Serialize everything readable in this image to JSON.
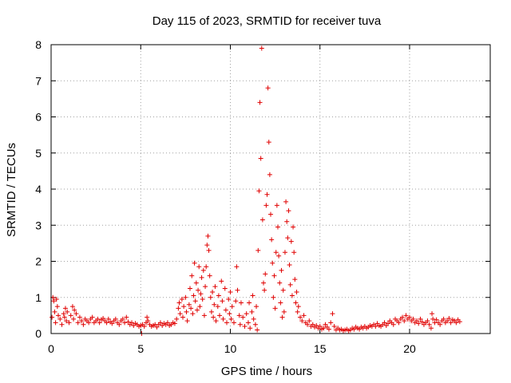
{
  "chart_data": {
    "type": "scatter",
    "title": "Day 115 of 2023, SRMTID for receiver tuva",
    "xlabel": "GPS time / hours",
    "ylabel": "SRMTID / TECUs",
    "xlim": [
      0,
      24.5
    ],
    "ylim": [
      0,
      8
    ],
    "xticks": [
      0,
      5,
      10,
      15,
      20
    ],
    "yticks": [
      0,
      1,
      2,
      3,
      4,
      5,
      6,
      7,
      8
    ],
    "grid": true,
    "marker": "+",
    "color": "#e00000",
    "series": [
      {
        "name": "SRMTID",
        "points": [
          [
            0.05,
            0.45
          ],
          [
            0.1,
            1.0
          ],
          [
            0.15,
            0.9
          ],
          [
            0.2,
            0.6
          ],
          [
            0.25,
            0.3
          ],
          [
            0.3,
            0.95
          ],
          [
            0.35,
            0.75
          ],
          [
            0.4,
            0.5
          ],
          [
            0.5,
            0.4
          ],
          [
            0.6,
            0.25
          ],
          [
            0.7,
            0.55
          ],
          [
            0.75,
            0.45
          ],
          [
            0.8,
            0.7
          ],
          [
            0.85,
            0.35
          ],
          [
            0.9,
            0.6
          ],
          [
            1.0,
            0.3
          ],
          [
            1.1,
            0.5
          ],
          [
            1.2,
            0.75
          ],
          [
            1.25,
            0.4
          ],
          [
            1.3,
            0.65
          ],
          [
            1.4,
            0.55
          ],
          [
            1.5,
            0.3
          ],
          [
            1.6,
            0.45
          ],
          [
            1.7,
            0.35
          ],
          [
            1.8,
            0.25
          ],
          [
            1.9,
            0.4
          ],
          [
            2.0,
            0.35
          ],
          [
            2.1,
            0.3
          ],
          [
            2.2,
            0.4
          ],
          [
            2.3,
            0.45
          ],
          [
            2.4,
            0.3
          ],
          [
            2.5,
            0.35
          ],
          [
            2.6,
            0.4
          ],
          [
            2.7,
            0.3
          ],
          [
            2.8,
            0.38
          ],
          [
            2.9,
            0.42
          ],
          [
            3.0,
            0.35
          ],
          [
            3.1,
            0.3
          ],
          [
            3.2,
            0.4
          ],
          [
            3.3,
            0.32
          ],
          [
            3.4,
            0.28
          ],
          [
            3.5,
            0.35
          ],
          [
            3.6,
            0.4
          ],
          [
            3.7,
            0.3
          ],
          [
            3.8,
            0.25
          ],
          [
            3.9,
            0.35
          ],
          [
            4.0,
            0.4
          ],
          [
            4.1,
            0.3
          ],
          [
            4.2,
            0.45
          ],
          [
            4.3,
            0.32
          ],
          [
            4.4,
            0.25
          ],
          [
            4.5,
            0.3
          ],
          [
            4.6,
            0.22
          ],
          [
            4.7,
            0.28
          ],
          [
            4.8,
            0.25
          ],
          [
            4.9,
            0.2
          ],
          [
            5.0,
            0.22
          ],
          [
            5.05,
            0.0
          ],
          [
            5.1,
            0.25
          ],
          [
            5.2,
            0.2
          ],
          [
            5.3,
            0.3
          ],
          [
            5.35,
            0.45
          ],
          [
            5.4,
            0.35
          ],
          [
            5.5,
            0.25
          ],
          [
            5.6,
            0.2
          ],
          [
            5.7,
            0.22
          ],
          [
            5.8,
            0.25
          ],
          [
            5.9,
            0.18
          ],
          [
            6.0,
            0.25
          ],
          [
            6.1,
            0.3
          ],
          [
            6.2,
            0.22
          ],
          [
            6.3,
            0.28
          ],
          [
            6.4,
            0.25
          ],
          [
            6.5,
            0.3
          ],
          [
            6.6,
            0.22
          ],
          [
            6.7,
            0.25
          ],
          [
            6.8,
            0.3
          ],
          [
            6.9,
            0.28
          ],
          [
            7.0,
            0.4
          ],
          [
            7.1,
            0.7
          ],
          [
            7.15,
            0.85
          ],
          [
            7.2,
            0.55
          ],
          [
            7.3,
            0.95
          ],
          [
            7.35,
            0.45
          ],
          [
            7.4,
            0.75
          ],
          [
            7.5,
            1.0
          ],
          [
            7.55,
            0.6
          ],
          [
            7.6,
            0.35
          ],
          [
            7.7,
            0.8
          ],
          [
            7.75,
            1.25
          ],
          [
            7.8,
            0.7
          ],
          [
            7.85,
            1.6
          ],
          [
            7.9,
            0.55
          ],
          [
            7.95,
            1.05
          ],
          [
            8.0,
            1.95
          ],
          [
            8.05,
            0.9
          ],
          [
            8.1,
            1.4
          ],
          [
            8.15,
            0.65
          ],
          [
            8.2,
            1.2
          ],
          [
            8.25,
            1.85
          ],
          [
            8.3,
            0.75
          ],
          [
            8.35,
            1.1
          ],
          [
            8.4,
            1.55
          ],
          [
            8.45,
            0.95
          ],
          [
            8.5,
            1.75
          ],
          [
            8.55,
            0.5
          ],
          [
            8.6,
            1.3
          ],
          [
            8.65,
            1.85
          ],
          [
            8.7,
            2.45
          ],
          [
            8.75,
            2.7
          ],
          [
            8.8,
            2.3
          ],
          [
            8.85,
            1.6
          ],
          [
            8.9,
            1.0
          ],
          [
            8.95,
            0.6
          ],
          [
            9.0,
            1.15
          ],
          [
            9.05,
            0.45
          ],
          [
            9.1,
            0.8
          ],
          [
            9.15,
            1.3
          ],
          [
            9.2,
            0.35
          ],
          [
            9.3,
            0.75
          ],
          [
            9.35,
            1.05
          ],
          [
            9.4,
            0.5
          ],
          [
            9.5,
            1.45
          ],
          [
            9.55,
            0.9
          ],
          [
            9.6,
            0.4
          ],
          [
            9.7,
            1.25
          ],
          [
            9.75,
            0.65
          ],
          [
            9.8,
            0.3
          ],
          [
            9.9,
            0.95
          ],
          [
            9.95,
            0.55
          ],
          [
            10.0,
            1.15
          ],
          [
            10.05,
            0.4
          ],
          [
            10.1,
            0.75
          ],
          [
            10.2,
            0.3
          ],
          [
            10.3,
            0.9
          ],
          [
            10.35,
            1.85
          ],
          [
            10.4,
            1.2
          ],
          [
            10.5,
            0.5
          ],
          [
            10.55,
            0.25
          ],
          [
            10.6,
            0.85
          ],
          [
            10.7,
            0.45
          ],
          [
            10.8,
            0.2
          ],
          [
            10.9,
            0.55
          ],
          [
            11.0,
            0.3
          ],
          [
            11.05,
            0.85
          ],
          [
            11.1,
            0.15
          ],
          [
            11.2,
            0.6
          ],
          [
            11.25,
            1.05
          ],
          [
            11.3,
            0.4
          ],
          [
            11.4,
            0.25
          ],
          [
            11.45,
            0.75
          ],
          [
            11.5,
            0.1
          ],
          [
            11.55,
            2.3
          ],
          [
            11.6,
            3.95
          ],
          [
            11.65,
            6.4
          ],
          [
            11.7,
            4.85
          ],
          [
            11.75,
            7.9
          ],
          [
            11.8,
            3.15
          ],
          [
            11.85,
            1.4
          ],
          [
            11.9,
            1.2
          ],
          [
            11.95,
            1.65
          ],
          [
            12.0,
            3.55
          ],
          [
            12.05,
            3.85
          ],
          [
            12.1,
            6.8
          ],
          [
            12.15,
            5.3
          ],
          [
            12.2,
            4.4
          ],
          [
            12.25,
            3.3
          ],
          [
            12.3,
            2.6
          ],
          [
            12.35,
            1.95
          ],
          [
            12.4,
            1.0
          ],
          [
            12.45,
            1.6
          ],
          [
            12.5,
            0.7
          ],
          [
            12.55,
            2.25
          ],
          [
            12.6,
            3.55
          ],
          [
            12.65,
            2.95
          ],
          [
            12.7,
            2.15
          ],
          [
            12.75,
            1.4
          ],
          [
            12.8,
            0.85
          ],
          [
            12.85,
            1.75
          ],
          [
            12.9,
            0.45
          ],
          [
            12.95,
            1.2
          ],
          [
            13.0,
            0.6
          ],
          [
            13.05,
            2.25
          ],
          [
            13.1,
            3.65
          ],
          [
            13.15,
            3.1
          ],
          [
            13.2,
            2.65
          ],
          [
            13.25,
            3.4
          ],
          [
            13.3,
            1.9
          ],
          [
            13.35,
            1.35
          ],
          [
            13.4,
            2.55
          ],
          [
            13.45,
            1.05
          ],
          [
            13.5,
            2.95
          ],
          [
            13.55,
            2.25
          ],
          [
            13.6,
            1.5
          ],
          [
            13.65,
            0.85
          ],
          [
            13.7,
            1.15
          ],
          [
            13.75,
            0.6
          ],
          [
            13.8,
            0.75
          ],
          [
            13.9,
            0.45
          ],
          [
            14.0,
            0.35
          ],
          [
            14.1,
            0.5
          ],
          [
            14.2,
            0.3
          ],
          [
            14.3,
            0.25
          ],
          [
            14.4,
            0.35
          ],
          [
            14.5,
            0.2
          ],
          [
            14.6,
            0.25
          ],
          [
            14.7,
            0.18
          ],
          [
            14.8,
            0.22
          ],
          [
            14.9,
            0.15
          ],
          [
            15.0,
            0.2
          ],
          [
            15.1,
            0.12
          ],
          [
            15.2,
            0.15
          ],
          [
            15.3,
            0.25
          ],
          [
            15.4,
            0.18
          ],
          [
            15.5,
            0.12
          ],
          [
            15.6,
            0.3
          ],
          [
            15.7,
            0.55
          ],
          [
            15.8,
            0.2
          ],
          [
            15.9,
            0.1
          ],
          [
            16.0,
            0.15
          ],
          [
            16.1,
            0.1
          ],
          [
            16.2,
            0.12
          ],
          [
            16.3,
            0.08
          ],
          [
            16.4,
            0.1
          ],
          [
            16.5,
            0.12
          ],
          [
            16.6,
            0.08
          ],
          [
            16.7,
            0.1
          ],
          [
            16.8,
            0.15
          ],
          [
            16.9,
            0.12
          ],
          [
            17.0,
            0.18
          ],
          [
            17.1,
            0.15
          ],
          [
            17.2,
            0.12
          ],
          [
            17.3,
            0.18
          ],
          [
            17.4,
            0.15
          ],
          [
            17.5,
            0.2
          ],
          [
            17.6,
            0.15
          ],
          [
            17.7,
            0.18
          ],
          [
            17.8,
            0.22
          ],
          [
            17.9,
            0.2
          ],
          [
            18.0,
            0.25
          ],
          [
            18.1,
            0.2
          ],
          [
            18.2,
            0.28
          ],
          [
            18.3,
            0.22
          ],
          [
            18.4,
            0.2
          ],
          [
            18.5,
            0.25
          ],
          [
            18.6,
            0.3
          ],
          [
            18.7,
            0.22
          ],
          [
            18.8,
            0.28
          ],
          [
            18.9,
            0.35
          ],
          [
            19.0,
            0.3
          ],
          [
            19.1,
            0.25
          ],
          [
            19.2,
            0.4
          ],
          [
            19.3,
            0.35
          ],
          [
            19.4,
            0.3
          ],
          [
            19.5,
            0.4
          ],
          [
            19.6,
            0.45
          ],
          [
            19.7,
            0.35
          ],
          [
            19.8,
            0.5
          ],
          [
            19.9,
            0.4
          ],
          [
            20.0,
            0.45
          ],
          [
            20.1,
            0.35
          ],
          [
            20.2,
            0.4
          ],
          [
            20.3,
            0.3
          ],
          [
            20.4,
            0.35
          ],
          [
            20.5,
            0.28
          ],
          [
            20.6,
            0.4
          ],
          [
            20.7,
            0.32
          ],
          [
            20.8,
            0.25
          ],
          [
            20.9,
            0.3
          ],
          [
            21.0,
            0.35
          ],
          [
            21.1,
            0.25
          ],
          [
            21.2,
            0.15
          ],
          [
            21.25,
            0.55
          ],
          [
            21.3,
            0.4
          ],
          [
            21.4,
            0.3
          ],
          [
            21.5,
            0.38
          ],
          [
            21.6,
            0.3
          ],
          [
            21.7,
            0.25
          ],
          [
            21.8,
            0.35
          ],
          [
            21.9,
            0.4
          ],
          [
            22.0,
            0.3
          ],
          [
            22.1,
            0.35
          ],
          [
            22.2,
            0.42
          ],
          [
            22.3,
            0.3
          ],
          [
            22.4,
            0.38
          ],
          [
            22.5,
            0.35
          ],
          [
            22.6,
            0.3
          ],
          [
            22.7,
            0.38
          ],
          [
            22.8,
            0.33
          ]
        ]
      }
    ]
  }
}
